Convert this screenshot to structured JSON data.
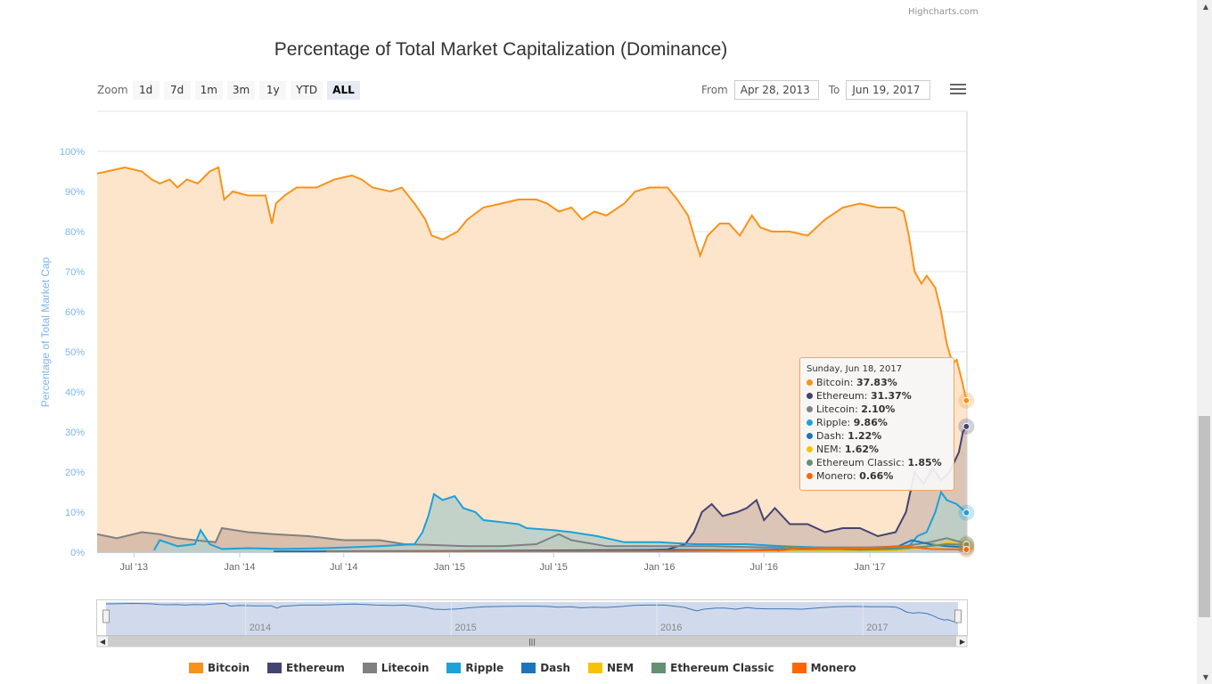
{
  "credits": "Highcharts.com",
  "title": "Percentage of Total Market Capitalization (Dominance)",
  "zoom": {
    "label": "Zoom",
    "buttons": [
      "1d",
      "7d",
      "1m",
      "3m",
      "1y",
      "YTD",
      "ALL"
    ],
    "active": "ALL"
  },
  "range": {
    "from_label": "From",
    "from_value": "Apr 28, 2013",
    "to_label": "To",
    "to_value": "Jun 19, 2017"
  },
  "tooltip": {
    "date": "Sunday, Jun 18, 2017",
    "rows": [
      {
        "name": "Bitcoin",
        "value": "37.83%",
        "color": "#f7931a"
      },
      {
        "name": "Ethereum",
        "value": "31.37%",
        "color": "#434371"
      },
      {
        "name": "Litecoin",
        "value": "2.10%",
        "color": "#808080"
      },
      {
        "name": "Ripple",
        "value": "9.86%",
        "color": "#1da1d9"
      },
      {
        "name": "Dash",
        "value": "1.22%",
        "color": "#1c75bc"
      },
      {
        "name": "NEM",
        "value": "1.62%",
        "color": "#f5c400"
      },
      {
        "name": "Ethereum Classic",
        "value": "1.85%",
        "color": "#669073"
      },
      {
        "name": "Monero",
        "value": "0.66%",
        "color": "#ff6600"
      }
    ]
  },
  "chart_data": {
    "type": "area",
    "ylabel": "Percentage of Total Market Cap",
    "y_ticks": [
      "0%",
      "10%",
      "20%",
      "30%",
      "40%",
      "50%",
      "60%",
      "70%",
      "80%",
      "90%",
      "100%"
    ],
    "ylim": [
      0,
      100
    ],
    "x_range": [
      "2013-04-28",
      "2017-06-19"
    ],
    "x_ticks": [
      {
        "date": "2013-07-01",
        "label": "Jul '13"
      },
      {
        "date": "2014-01-01",
        "label": "Jan '14"
      },
      {
        "date": "2014-07-01",
        "label": "Jul '14"
      },
      {
        "date": "2015-01-01",
        "label": "Jan '15"
      },
      {
        "date": "2015-07-01",
        "label": "Jul '15"
      },
      {
        "date": "2016-01-01",
        "label": "Jan '16"
      },
      {
        "date": "2016-07-01",
        "label": "Jul '16"
      },
      {
        "date": "2017-01-01",
        "label": "Jan '17"
      }
    ],
    "navigator_ticks": [
      {
        "date": "2014-01-01",
        "label": "2014"
      },
      {
        "date": "2015-01-01",
        "label": "2015"
      },
      {
        "date": "2016-01-01",
        "label": "2016"
      },
      {
        "date": "2017-01-01",
        "label": "2017"
      }
    ],
    "legend_position": "bottom",
    "series": [
      {
        "name": "Bitcoin",
        "color": "#f7931a",
        "fill": "#fde0c3",
        "points": [
          [
            "2013-04-28",
            94.5
          ],
          [
            "2013-05-15",
            95
          ],
          [
            "2013-06-15",
            96
          ],
          [
            "2013-07-15",
            95
          ],
          [
            "2013-08-01",
            93
          ],
          [
            "2013-08-15",
            92
          ],
          [
            "2013-09-01",
            93
          ],
          [
            "2013-09-15",
            91
          ],
          [
            "2013-10-01",
            93
          ],
          [
            "2013-10-20",
            92
          ],
          [
            "2013-11-10",
            95
          ],
          [
            "2013-11-25",
            96
          ],
          [
            "2013-12-05",
            88
          ],
          [
            "2013-12-20",
            90
          ],
          [
            "2014-01-15",
            89
          ],
          [
            "2014-02-15",
            89
          ],
          [
            "2014-02-26",
            82
          ],
          [
            "2014-03-05",
            87
          ],
          [
            "2014-03-20",
            89
          ],
          [
            "2014-04-10",
            91
          ],
          [
            "2014-05-15",
            91
          ],
          [
            "2014-06-15",
            93
          ],
          [
            "2014-07-15",
            94
          ],
          [
            "2014-08-01",
            93
          ],
          [
            "2014-08-20",
            91
          ],
          [
            "2014-09-20",
            90
          ],
          [
            "2014-10-10",
            91
          ],
          [
            "2014-11-01",
            87
          ],
          [
            "2014-11-20",
            83
          ],
          [
            "2014-12-01",
            79
          ],
          [
            "2014-12-20",
            78
          ],
          [
            "2015-01-15",
            80
          ],
          [
            "2015-02-01",
            83
          ],
          [
            "2015-03-01",
            86
          ],
          [
            "2015-04-01",
            87
          ],
          [
            "2015-05-01",
            88
          ],
          [
            "2015-06-01",
            88
          ],
          [
            "2015-06-20",
            87
          ],
          [
            "2015-07-10",
            85
          ],
          [
            "2015-08-01",
            86
          ],
          [
            "2015-08-20",
            83
          ],
          [
            "2015-09-10",
            85
          ],
          [
            "2015-10-01",
            84
          ],
          [
            "2015-11-01",
            87
          ],
          [
            "2015-11-20",
            90
          ],
          [
            "2015-12-15",
            91
          ],
          [
            "2016-01-15",
            91
          ],
          [
            "2016-02-01",
            88
          ],
          [
            "2016-02-20",
            84
          ],
          [
            "2016-03-01",
            79
          ],
          [
            "2016-03-12",
            74
          ],
          [
            "2016-03-25",
            79
          ],
          [
            "2016-04-15",
            82
          ],
          [
            "2016-05-01",
            82
          ],
          [
            "2016-05-20",
            79
          ],
          [
            "2016-06-10",
            84
          ],
          [
            "2016-06-25",
            81
          ],
          [
            "2016-07-15",
            80
          ],
          [
            "2016-08-15",
            80
          ],
          [
            "2016-09-15",
            79
          ],
          [
            "2016-10-15",
            83
          ],
          [
            "2016-11-15",
            86
          ],
          [
            "2016-12-15",
            87
          ],
          [
            "2017-01-15",
            86
          ],
          [
            "2017-02-15",
            86
          ],
          [
            "2017-03-01",
            85
          ],
          [
            "2017-03-10",
            79
          ],
          [
            "2017-03-20",
            70
          ],
          [
            "2017-04-01",
            67
          ],
          [
            "2017-04-10",
            69
          ],
          [
            "2017-04-25",
            66
          ],
          [
            "2017-05-05",
            60
          ],
          [
            "2017-05-15",
            52
          ],
          [
            "2017-05-25",
            47
          ],
          [
            "2017-06-01",
            48
          ],
          [
            "2017-06-10",
            43
          ],
          [
            "2017-06-18",
            37.83
          ]
        ]
      },
      {
        "name": "Ethereum",
        "color": "#434371",
        "fill": "#d4bfb2",
        "points": [
          [
            "2015-08-07",
            0.4
          ],
          [
            "2015-11-01",
            0.4
          ],
          [
            "2016-01-15",
            0.7
          ],
          [
            "2016-02-15",
            2
          ],
          [
            "2016-03-01",
            5
          ],
          [
            "2016-03-15",
            10
          ],
          [
            "2016-04-01",
            12
          ],
          [
            "2016-04-20",
            9
          ],
          [
            "2016-05-15",
            10
          ],
          [
            "2016-06-01",
            11
          ],
          [
            "2016-06-18",
            13
          ],
          [
            "2016-07-01",
            8
          ],
          [
            "2016-07-20",
            11
          ],
          [
            "2016-08-15",
            7
          ],
          [
            "2016-09-15",
            7
          ],
          [
            "2016-10-15",
            5
          ],
          [
            "2016-11-15",
            6
          ],
          [
            "2016-12-15",
            6
          ],
          [
            "2017-01-15",
            4
          ],
          [
            "2017-02-15",
            5
          ],
          [
            "2017-03-05",
            10
          ],
          [
            "2017-03-20",
            20
          ],
          [
            "2017-04-05",
            17
          ],
          [
            "2017-04-20",
            21
          ],
          [
            "2017-05-05",
            18
          ],
          [
            "2017-05-20",
            20
          ],
          [
            "2017-06-05",
            25
          ],
          [
            "2017-06-12",
            30
          ],
          [
            "2017-06-18",
            31.37
          ]
        ]
      },
      {
        "name": "Litecoin",
        "color": "#808080",
        "fill": "#d2b9a6",
        "points": [
          [
            "2013-04-28",
            4.5
          ],
          [
            "2013-06-01",
            3.5
          ],
          [
            "2013-07-15",
            5
          ],
          [
            "2013-08-15",
            4.5
          ],
          [
            "2013-09-15",
            3.5
          ],
          [
            "2013-10-15",
            3
          ],
          [
            "2013-11-20",
            2.5
          ],
          [
            "2013-12-01",
            6
          ],
          [
            "2014-01-15",
            5
          ],
          [
            "2014-03-01",
            4.5
          ],
          [
            "2014-05-01",
            4
          ],
          [
            "2014-07-01",
            3
          ],
          [
            "2014-09-01",
            3
          ],
          [
            "2014-10-15",
            2
          ],
          [
            "2014-12-01",
            1.8
          ],
          [
            "2015-02-01",
            1.5
          ],
          [
            "2015-04-01",
            1.5
          ],
          [
            "2015-06-01",
            2
          ],
          [
            "2015-07-10",
            4.5
          ],
          [
            "2015-08-01",
            3
          ],
          [
            "2015-10-01",
            1.5
          ],
          [
            "2016-01-01",
            1.5
          ],
          [
            "2016-04-01",
            1.5
          ],
          [
            "2016-07-01",
            1.2
          ],
          [
            "2016-10-01",
            1.2
          ],
          [
            "2017-01-01",
            1.2
          ],
          [
            "2017-03-01",
            1.5
          ],
          [
            "2017-04-15",
            2.5
          ],
          [
            "2017-05-15",
            3.5
          ],
          [
            "2017-06-18",
            2.1
          ]
        ]
      },
      {
        "name": "Ripple",
        "color": "#1da1d9",
        "fill": "#b8cfc8",
        "points": [
          [
            "2013-08-05",
            0.5
          ],
          [
            "2013-08-15",
            3
          ],
          [
            "2013-09-15",
            1.5
          ],
          [
            "2013-10-15",
            2
          ],
          [
            "2013-10-25",
            5.5
          ],
          [
            "2013-11-10",
            2
          ],
          [
            "2013-12-01",
            0.8
          ],
          [
            "2014-01-15",
            1
          ],
          [
            "2014-03-15",
            0.8
          ],
          [
            "2014-06-01",
            1
          ],
          [
            "2014-09-01",
            1.5
          ],
          [
            "2014-11-01",
            2
          ],
          [
            "2014-11-15",
            5
          ],
          [
            "2014-11-25",
            9
          ],
          [
            "2014-12-05",
            14.5
          ],
          [
            "2014-12-20",
            13
          ],
          [
            "2015-01-10",
            14
          ],
          [
            "2015-01-25",
            11
          ],
          [
            "2015-02-15",
            10
          ],
          [
            "2015-03-01",
            8
          ],
          [
            "2015-04-01",
            7.5
          ],
          [
            "2015-05-01",
            7
          ],
          [
            "2015-05-15",
            6
          ],
          [
            "2015-07-01",
            5.5
          ],
          [
            "2015-08-01",
            5
          ],
          [
            "2015-09-15",
            4
          ],
          [
            "2015-11-01",
            2.5
          ],
          [
            "2016-01-01",
            2.5
          ],
          [
            "2016-03-01",
            2
          ],
          [
            "2016-06-01",
            2
          ],
          [
            "2016-08-01",
            1.5
          ],
          [
            "2016-10-01",
            1.2
          ],
          [
            "2016-12-01",
            1
          ],
          [
            "2017-02-01",
            1
          ],
          [
            "2017-03-10",
            1.5
          ],
          [
            "2017-03-25",
            4
          ],
          [
            "2017-04-10",
            5
          ],
          [
            "2017-04-25",
            10
          ],
          [
            "2017-05-05",
            15
          ],
          [
            "2017-05-15",
            13
          ],
          [
            "2017-06-01",
            12
          ],
          [
            "2017-06-18",
            9.86
          ]
        ]
      },
      {
        "name": "Dash",
        "color": "#1c75bc",
        "points": [
          [
            "2014-03-01",
            0.2
          ],
          [
            "2015-01-01",
            0.3
          ],
          [
            "2016-01-01",
            0.6
          ],
          [
            "2016-06-01",
            0.5
          ],
          [
            "2016-09-01",
            0.8
          ],
          [
            "2017-01-01",
            0.8
          ],
          [
            "2017-02-20",
            1.5
          ],
          [
            "2017-03-15",
            3
          ],
          [
            "2017-04-15",
            2
          ],
          [
            "2017-05-15",
            1.5
          ],
          [
            "2017-06-18",
            1.22
          ]
        ]
      },
      {
        "name": "NEM",
        "color": "#f5c400",
        "points": [
          [
            "2015-04-01",
            0.1
          ],
          [
            "2016-06-01",
            0.1
          ],
          [
            "2016-09-01",
            0.3
          ],
          [
            "2017-01-01",
            0.3
          ],
          [
            "2017-03-01",
            0.6
          ],
          [
            "2017-04-15",
            1.5
          ],
          [
            "2017-05-20",
            2.5
          ],
          [
            "2017-06-05",
            2
          ],
          [
            "2017-06-18",
            1.62
          ]
        ]
      },
      {
        "name": "Ethereum Classic",
        "color": "#669073",
        "points": [
          [
            "2016-07-25",
            0.2
          ],
          [
            "2016-08-05",
            1.5
          ],
          [
            "2016-09-15",
            1
          ],
          [
            "2016-12-15",
            0.6
          ],
          [
            "2017-02-15",
            0.8
          ],
          [
            "2017-04-15",
            1.5
          ],
          [
            "2017-05-15",
            2
          ],
          [
            "2017-06-18",
            1.85
          ]
        ]
      },
      {
        "name": "Monero",
        "color": "#ff6600",
        "points": [
          [
            "2014-06-01",
            0.1
          ],
          [
            "2016-01-01",
            0.2
          ],
          [
            "2016-08-01",
            0.5
          ],
          [
            "2016-09-01",
            1
          ],
          [
            "2017-01-01",
            1
          ],
          [
            "2017-03-01",
            1.5
          ],
          [
            "2017-04-15",
            0.8
          ],
          [
            "2017-06-18",
            0.66
          ]
        ]
      }
    ]
  },
  "legend": [
    {
      "name": "Bitcoin",
      "color": "#f7931a"
    },
    {
      "name": "Ethereum",
      "color": "#434371"
    },
    {
      "name": "Litecoin",
      "color": "#808080"
    },
    {
      "name": "Ripple",
      "color": "#1da1d9"
    },
    {
      "name": "Dash",
      "color": "#1c75bc"
    },
    {
      "name": "NEM",
      "color": "#f5c400"
    },
    {
      "name": "Ethereum Classic",
      "color": "#669073"
    },
    {
      "name": "Monero",
      "color": "#ff6600"
    }
  ]
}
